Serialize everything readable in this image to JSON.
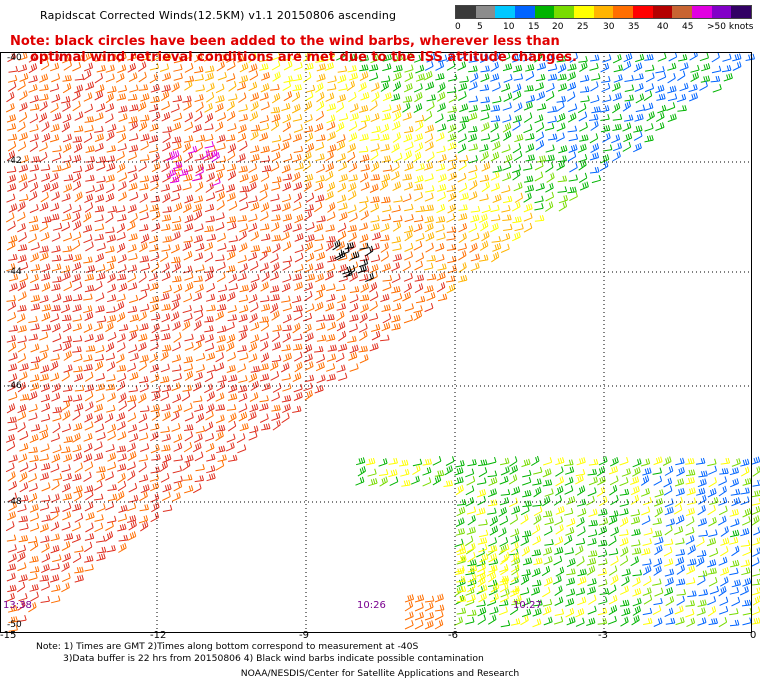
{
  "title": "Rapidscat Corrected Winds(12.5KM) v1.1 20150806 ascending",
  "note": {
    "line1": "Note: black circles have been added to the wind barbs, wherever less than",
    "line2": "optimal wind retrieval conditions are met due to the ISS attitude changes."
  },
  "color_scale": {
    "labels": [
      "0",
      "5",
      "10",
      "15",
      "20",
      "25",
      "30",
      "35",
      "40",
      "45",
      ">50 knots"
    ],
    "colors": [
      "#3a3a3a",
      "#8c8c8c",
      "#00c8ff",
      "#0064ff",
      "#00b400",
      "#78dc00",
      "#ffff00",
      "#ffb400",
      "#ff6e00",
      "#ff0000",
      "#b40000",
      "#c86432",
      "#e100e1",
      "#8200c8",
      "#320064"
    ]
  },
  "axes": {
    "x_ticks": [
      "-15",
      "-12",
      "-9",
      "-6",
      "-3",
      "0"
    ],
    "y_ticks": [
      "-40",
      "-42",
      "-44",
      "-46",
      "-48",
      "-50"
    ]
  },
  "time_labels": [
    "13:38",
    "10:26",
    "10:27"
  ],
  "footer": {
    "line1": "Note: 1) Times are GMT 2)Times along bottom correspond to measurement at -40S",
    "line2": "3)Data buffer is 22 hrs from 20150806 4) Black wind barbs indicate possible contamination",
    "credit": "NOAA/NESDIS/Center for Satellite Applications and Research"
  }
}
